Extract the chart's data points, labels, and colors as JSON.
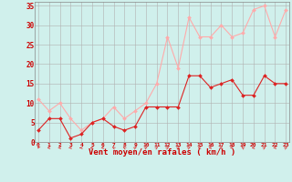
{
  "x": [
    0,
    1,
    2,
    3,
    4,
    5,
    6,
    7,
    8,
    9,
    10,
    11,
    12,
    13,
    14,
    15,
    16,
    17,
    18,
    19,
    20,
    21,
    22,
    23
  ],
  "wind_avg": [
    3,
    6,
    6,
    1,
    2,
    5,
    6,
    4,
    3,
    4,
    9,
    9,
    9,
    9,
    17,
    17,
    14,
    15,
    16,
    12,
    12,
    17,
    15,
    15
  ],
  "wind_gust": [
    11,
    8,
    10,
    6,
    3,
    5,
    6,
    9,
    6,
    8,
    10,
    15,
    27,
    19,
    32,
    27,
    27,
    30,
    27,
    28,
    34,
    35,
    27,
    34
  ],
  "wind_dir_angle": [
    200,
    270,
    270,
    270,
    270,
    270,
    270,
    315,
    315,
    45,
    45,
    45,
    45,
    45,
    45,
    270,
    270,
    270,
    270,
    315,
    270,
    45,
    270,
    45
  ],
  "avg_color": "#dd2222",
  "gust_color": "#ffaaaa",
  "bg_color": "#d0f0ec",
  "grid_color": "#b0b0b0",
  "xlabel": "Vent moyen/en rafales ( km/h )",
  "xlabel_color": "#cc0000",
  "tick_color": "#cc0000",
  "arrow_color": "#dd4444",
  "ylim": [
    0,
    36
  ],
  "xlim": [
    -0.3,
    23.3
  ],
  "yticks": [
    0,
    5,
    10,
    15,
    20,
    25,
    30,
    35
  ],
  "xticks": [
    0,
    1,
    2,
    3,
    4,
    5,
    6,
    7,
    8,
    9,
    10,
    11,
    12,
    13,
    14,
    15,
    16,
    17,
    18,
    19,
    20,
    21,
    22,
    23
  ]
}
